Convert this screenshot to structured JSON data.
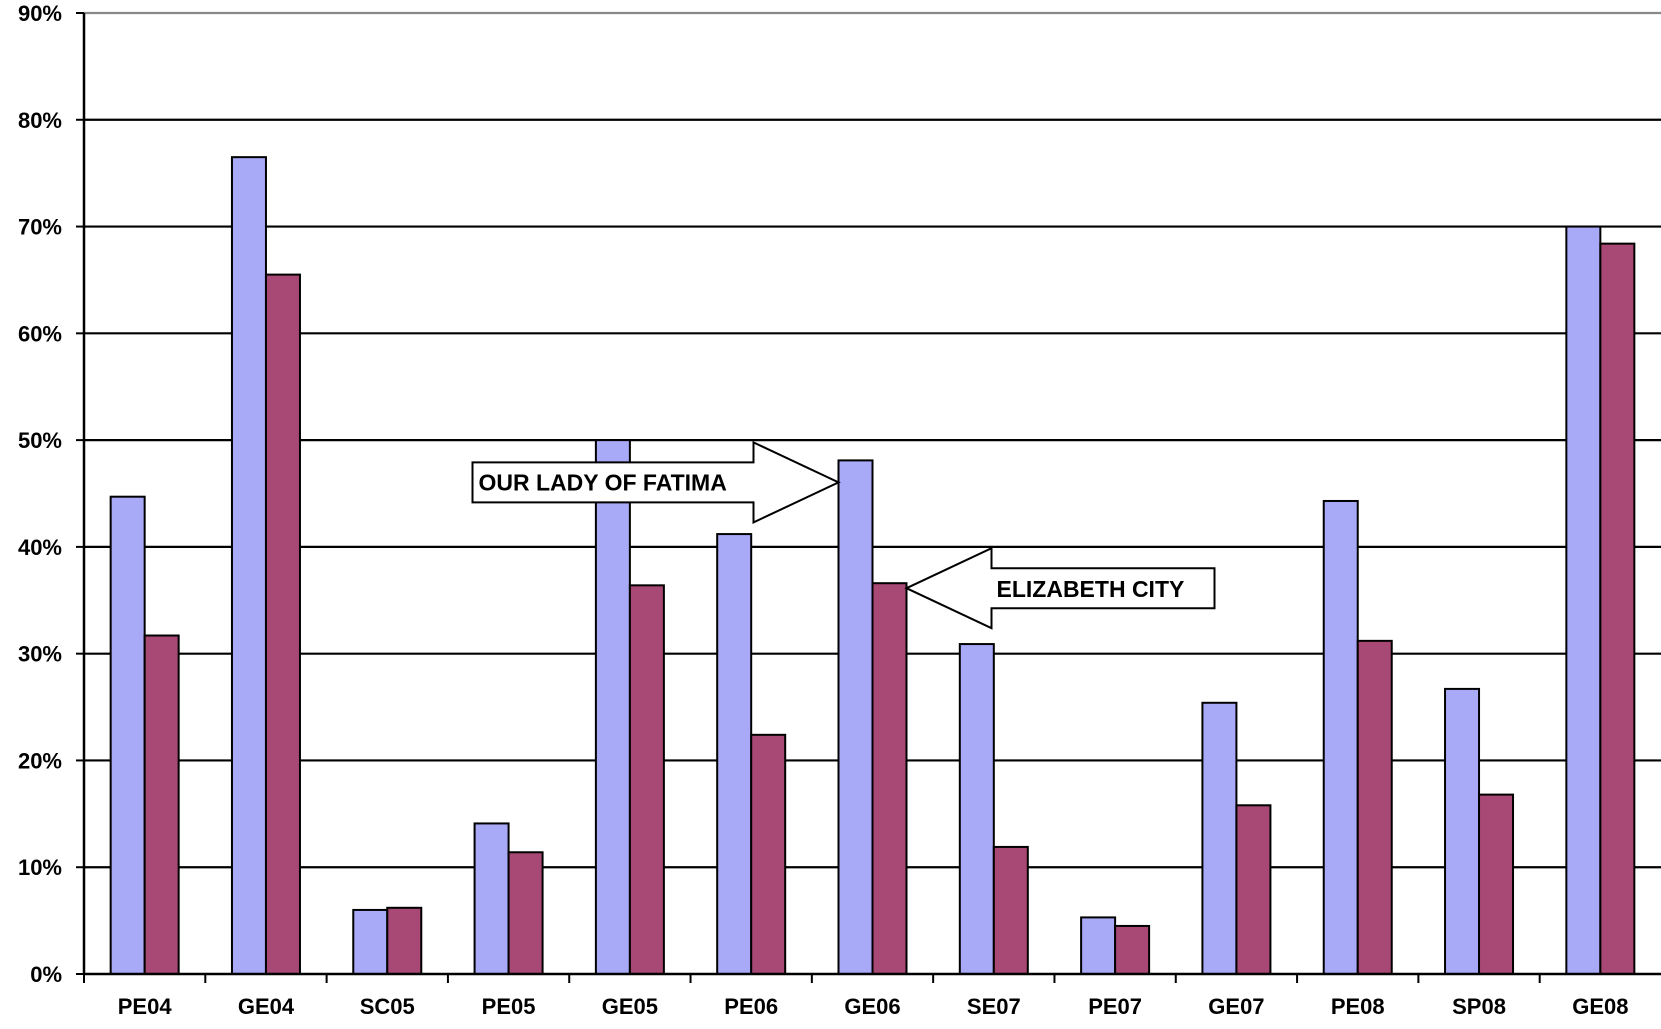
{
  "chart_data": {
    "type": "bar",
    "title": "",
    "xlabel": "",
    "ylabel": "",
    "ylim": [
      0,
      90
    ],
    "y_ticks": [
      "0%",
      "10%",
      "20%",
      "30%",
      "40%",
      "50%",
      "60%",
      "70%",
      "80%",
      "90%"
    ],
    "grid": true,
    "legend": "none",
    "categories": [
      "PE04",
      "GE04",
      "SC05",
      "PE05",
      "GE05",
      "PE06",
      "GE06",
      "SE07",
      "PE07",
      "GE07",
      "PE08",
      "SP08",
      "GE08"
    ],
    "series": [
      {
        "color": "#a8a9f7",
        "values": [
          44.7,
          76.5,
          6.0,
          14.1,
          50.0,
          41.2,
          48.1,
          30.9,
          5.3,
          25.4,
          44.3,
          26.7,
          70.0
        ]
      },
      {
        "color": "#a84874",
        "values": [
          31.7,
          65.5,
          6.2,
          11.4,
          36.4,
          22.4,
          36.6,
          11.9,
          4.5,
          15.8,
          31.2,
          16.8,
          68.4
        ]
      }
    ],
    "annotations": [
      {
        "text": "OUR LADY OF FATIMA",
        "category": "GE06",
        "series": 0,
        "direction": "right"
      },
      {
        "text": "ELIZABETH CITY",
        "category": "GE06",
        "series": 1,
        "direction": "left"
      }
    ]
  }
}
